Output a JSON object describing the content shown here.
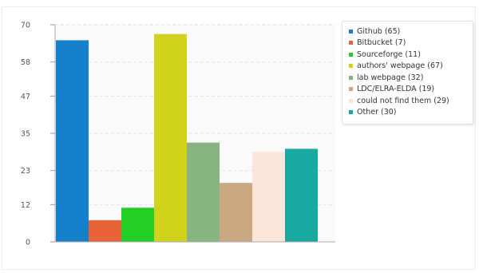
{
  "chart_data": {
    "type": "bar",
    "categories": [
      "Github",
      "Bitbucket",
      "Sourceforge",
      "authors' webpage",
      "lab webpage",
      "LDC/ELRA-ELDA",
      "could not find them",
      "Other"
    ],
    "values": [
      65,
      7,
      11,
      67,
      32,
      19,
      29,
      30
    ],
    "colors": [
      "#1480c9",
      "#e8623a",
      "#24cc26",
      "#d1d21c",
      "#8ab383",
      "#c9a881",
      "#fbe5da",
      "#1aa9a1"
    ],
    "legend": [
      "Github (65)",
      "Bitbucket (7)",
      "Sourceforge (11)",
      "authors' webpage (67)",
      "lab webpage (32)",
      "LDC/ELRA-ELDA (19)",
      "could not find them (29)",
      "Other (30)"
    ],
    "yticks": [
      0,
      12,
      23,
      35,
      47,
      58,
      70
    ],
    "ylim": [
      0,
      70
    ],
    "title": "",
    "xlabel": "",
    "ylabel": "",
    "grid": true,
    "legend_position": "top-right"
  }
}
